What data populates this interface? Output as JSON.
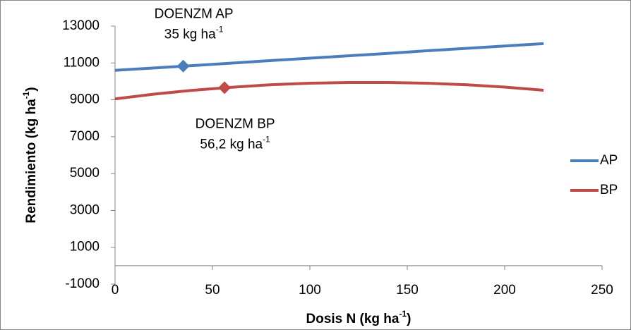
{
  "chart_data": {
    "type": "line",
    "xlabel": [
      "Dosis N (kg ha",
      "-1",
      ")"
    ],
    "ylabel": [
      "Rendimiento (kg ha",
      "-1",
      ")"
    ],
    "x": [
      0,
      20,
      40,
      60,
      80,
      100,
      120,
      140,
      160,
      180,
      200,
      220
    ],
    "series": [
      {
        "name": "AP",
        "color": "#4a7ebb",
        "values": [
          10600,
          10730,
          10860,
          10990,
          11130,
          11260,
          11390,
          11520,
          11660,
          11790,
          11920,
          12050
        ],
        "marker": {
          "x": 35,
          "y": 10830
        },
        "marker_label": [
          [
            "DOENZM AP"
          ],
          [
            "35 kg ha",
            "-1"
          ]
        ]
      },
      {
        "name": "BP",
        "color": "#be4b48",
        "values": [
          9050,
          9310,
          9520,
          9680,
          9820,
          9900,
          9940,
          9940,
          9900,
          9820,
          9690,
          9520
        ],
        "marker": {
          "x": 56.2,
          "y": 9660
        },
        "marker_label": [
          [
            "DOENZM BP"
          ],
          [
            "56,2 kg ha",
            "-1"
          ]
        ]
      }
    ],
    "xlim": [
      0,
      250
    ],
    "xticks": [
      0,
      50,
      100,
      150,
      200,
      250
    ],
    "ylim": [
      -1000,
      13000
    ],
    "yticks": [
      -1000,
      1000,
      3000,
      5000,
      7000,
      9000,
      11000,
      13000
    ],
    "grid": false,
    "legend": "right"
  }
}
